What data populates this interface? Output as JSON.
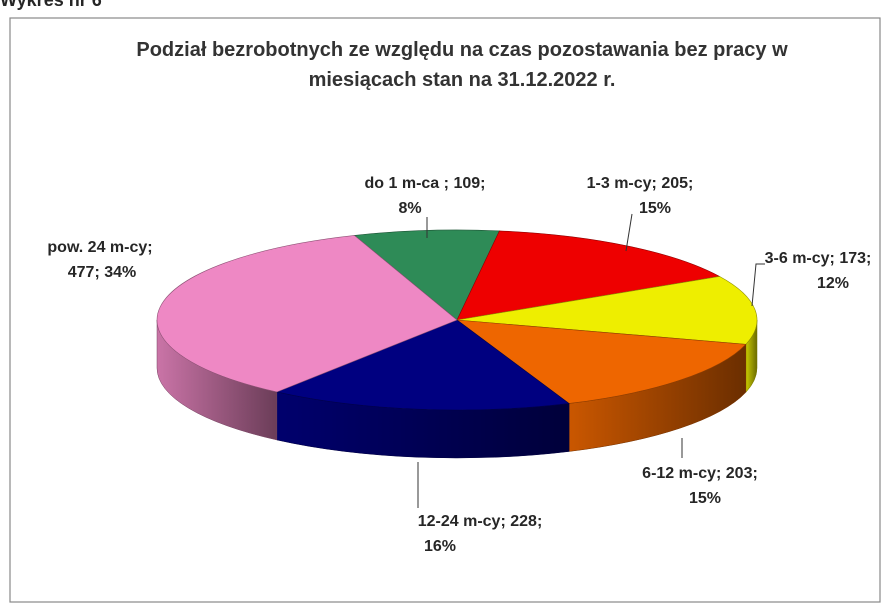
{
  "heading": "Wykres nr 6",
  "chart_data": {
    "type": "pie",
    "title": [
      "Podział bezrobotnych ze względu na czas pozostawania bez pracy w",
      "miesiącach stan na 31.12.2022 r."
    ],
    "categories": [
      "do 1 m-ca ",
      "1-3 m-cy",
      "3-6 m-cy",
      "6-12 m-cy",
      "12-24 m-cy",
      "pow. 24 m-cy"
    ],
    "values": [
      109,
      205,
      173,
      203,
      228,
      477
    ],
    "shares": [
      8,
      15,
      12,
      15,
      16,
      34
    ],
    "share_labels": [
      "8%",
      "15%",
      "12%",
      "15%",
      "16%",
      "34%"
    ],
    "separator": ";",
    "colors": [
      "#2e8b57",
      "#ee0000",
      "#eeee00",
      "#ee6600",
      "#000080",
      "#ee88c4"
    ],
    "start_angle": -20,
    "three_d": true
  }
}
